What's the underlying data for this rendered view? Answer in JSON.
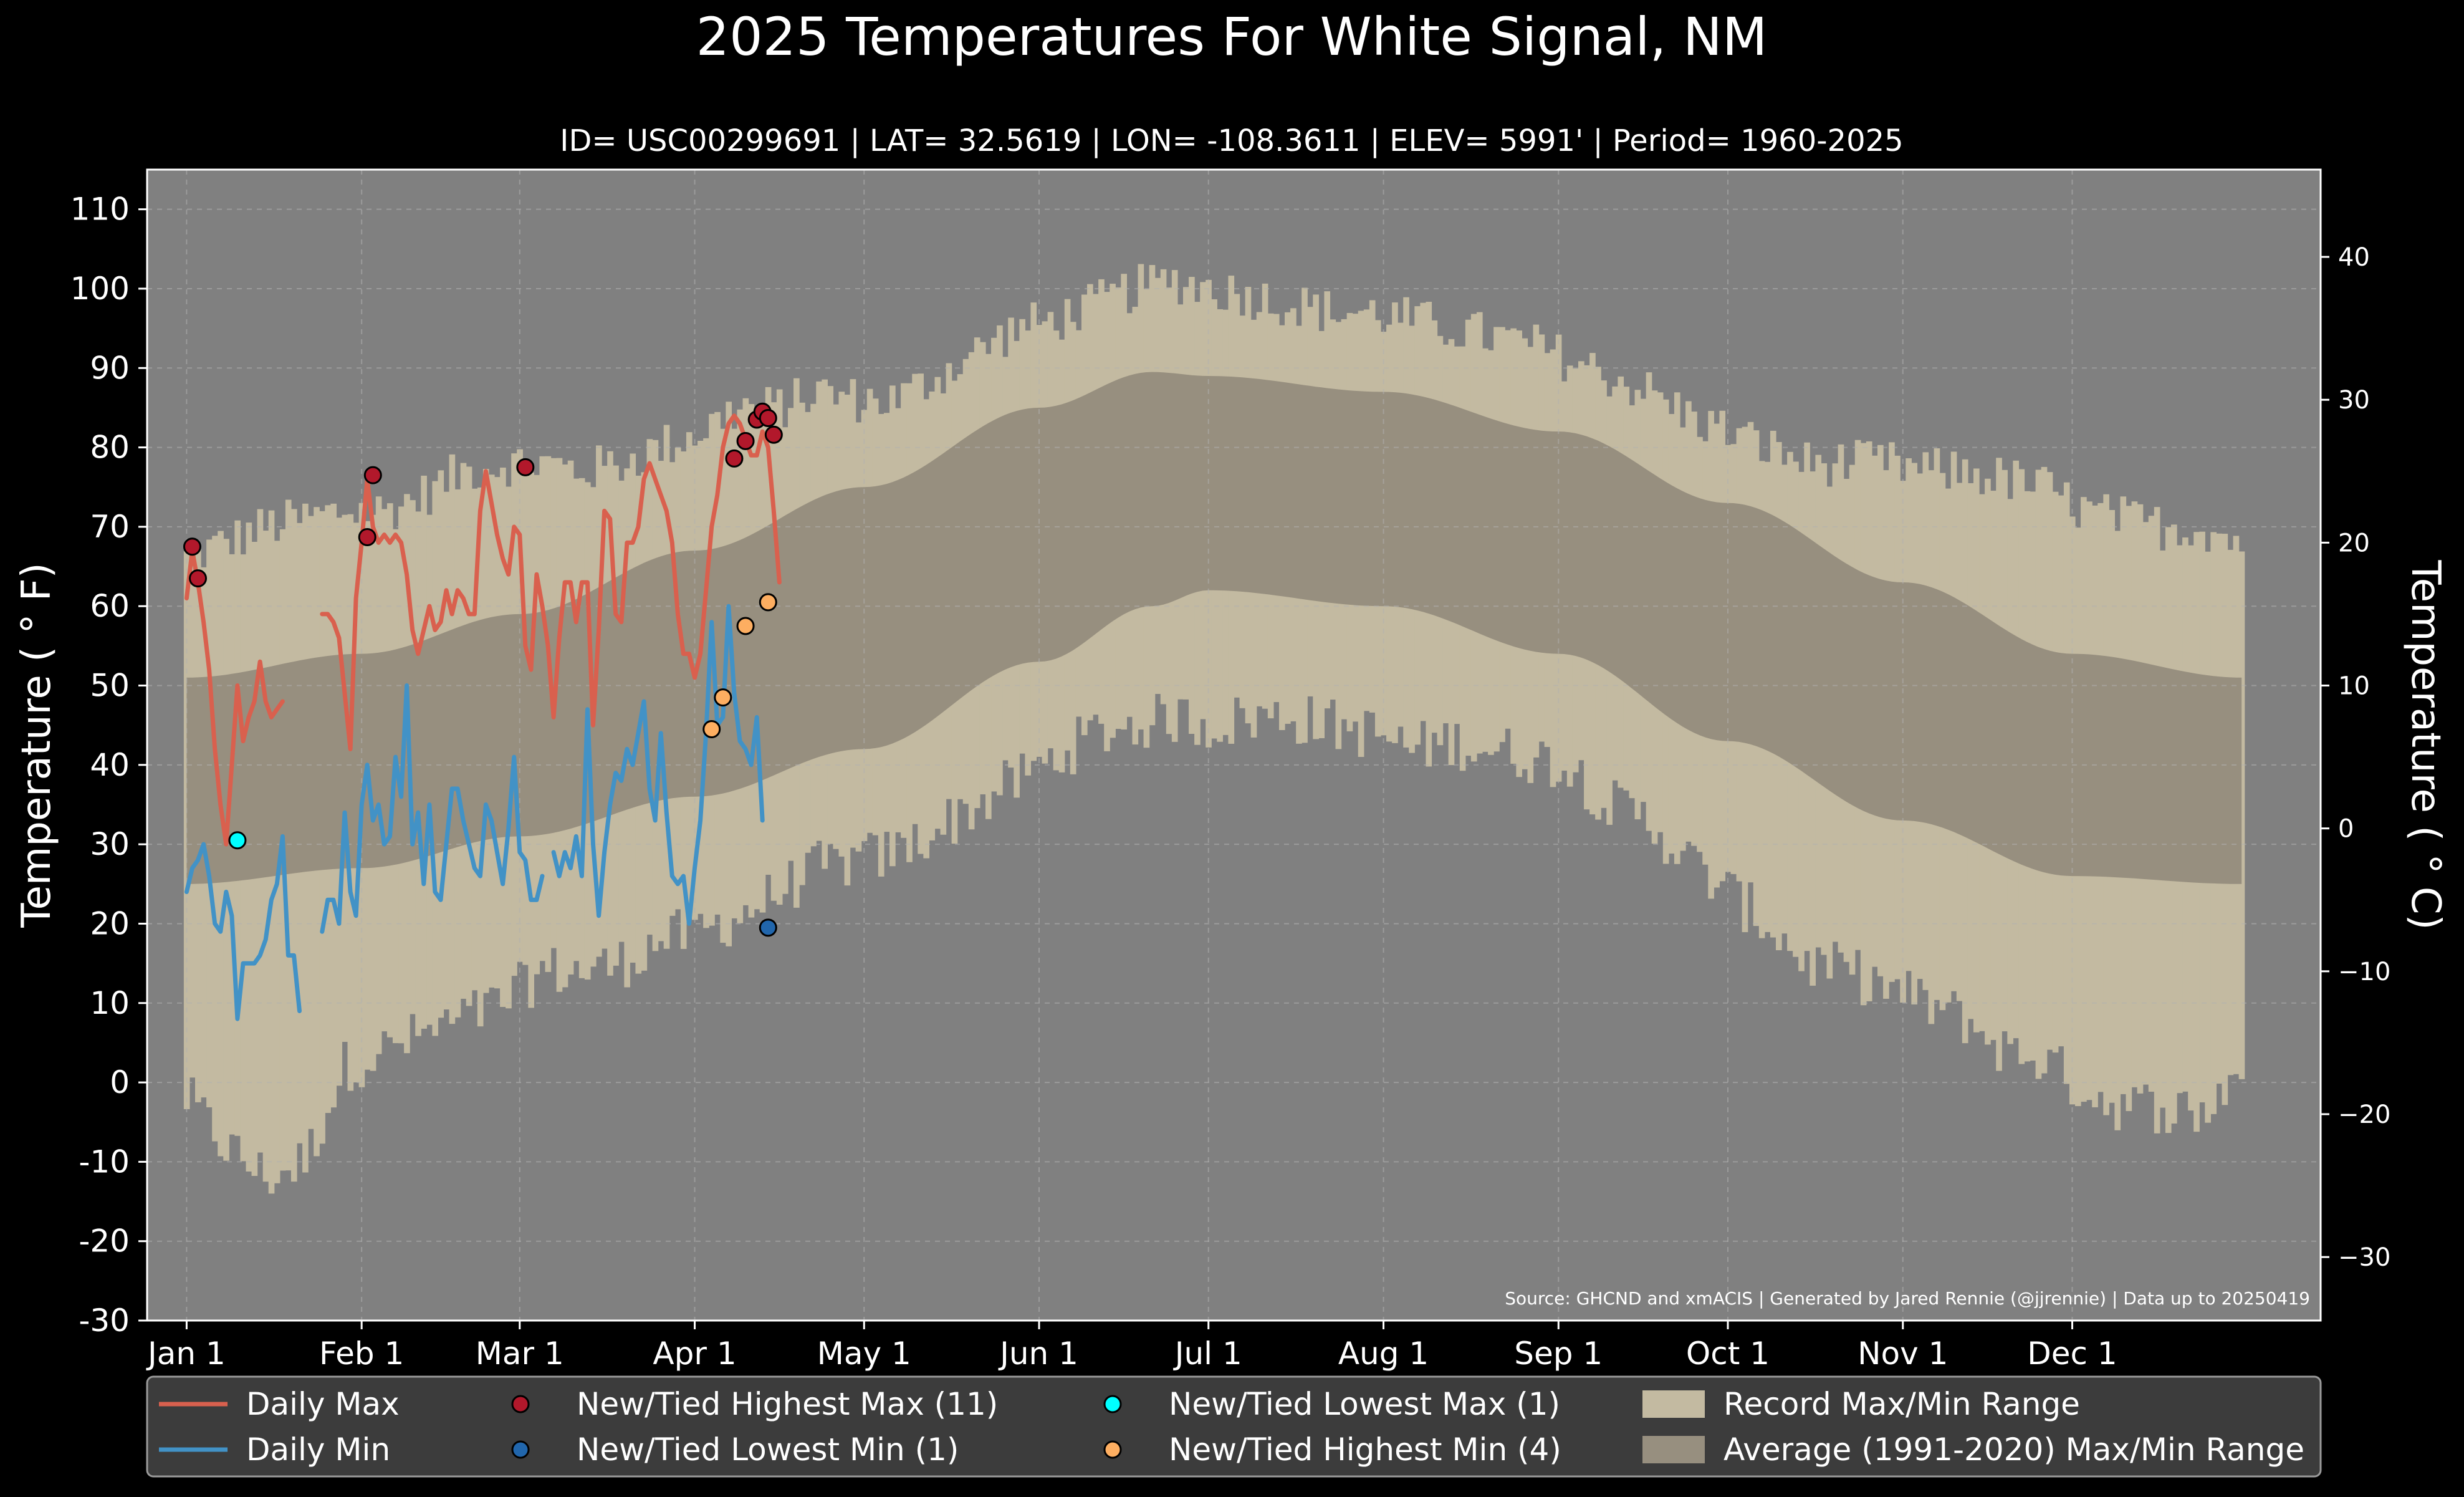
{
  "chart_data": {
    "type": "line",
    "title": "2025 Temperatures For White Signal, NM",
    "subtitle": "ID= USC00299691 | LAT= 32.5619 | LON= -108.3611 | ELEV= 5991' | Period= 1960-2025",
    "ylabel": "Temperature ( ° F)",
    "ylabel_right": "Temperature ( ° C)",
    "source": "Source: GHCND and xmACIS | Generated by Jared Rennie (@jjrennie) | Data up to 20250419",
    "ylim": [
      -30,
      115
    ],
    "ylim_right_c": [
      -34.44,
      46.11
    ],
    "xlim": [
      -6,
      379
    ],
    "grid": true,
    "legend_placement": "bottom",
    "y_ticks": [
      -30,
      -20,
      -10,
      0,
      10,
      20,
      30,
      40,
      50,
      60,
      70,
      80,
      90,
      100,
      110
    ],
    "y_tick_labels": [
      "-30",
      "-20",
      "-10",
      "0",
      "10",
      "20",
      "30",
      "40",
      "50",
      "60",
      "70",
      "80",
      "90",
      "100",
      "110"
    ],
    "y_ticks_right": [
      -30,
      -20,
      -10,
      0,
      10,
      20,
      30,
      40
    ],
    "y_tick_labels_right": [
      "−30",
      "−20",
      "−10",
      "0",
      "10",
      "20",
      "30",
      "40"
    ],
    "x_ticks": [
      1,
      32,
      60,
      91,
      121,
      152,
      182,
      213,
      244,
      274,
      305,
      335
    ],
    "x_tick_labels": [
      "Jan 1",
      "Feb 1",
      "Mar 1",
      "Apr 1",
      "May 1",
      "Jun 1",
      "Jul 1",
      "Aug 1",
      "Sep 1",
      "Oct 1",
      "Nov 1",
      "Dec 1"
    ],
    "record_max_anchors": {
      "day": [
        1,
        8,
        15,
        22,
        29,
        36,
        43,
        50,
        57,
        64,
        71,
        78,
        85,
        92,
        99,
        106,
        113,
        120,
        127,
        134,
        141,
        148,
        155,
        162,
        169,
        176,
        183,
        190,
        197,
        204,
        211,
        218,
        225,
        232,
        239,
        246,
        253,
        260,
        267,
        274,
        281,
        288,
        295,
        302,
        309,
        316,
        323,
        330,
        337,
        344,
        351,
        358,
        365
      ],
      "value": [
        66,
        68,
        70,
        71,
        72,
        72,
        74,
        77,
        78,
        78,
        77,
        78,
        80,
        82,
        85,
        85,
        87,
        86,
        86,
        89,
        92,
        95,
        96,
        98,
        100,
        101,
        100,
        99,
        98,
        97,
        97,
        96,
        95,
        94,
        93,
        91,
        89,
        87,
        84,
        82,
        80,
        78,
        78,
        78,
        77,
        77,
        76,
        75,
        72,
        71,
        70,
        70,
        68
      ]
    },
    "record_min_anchors": {
      "day": [
        1,
        8,
        15,
        22,
        29,
        36,
        43,
        50,
        57,
        64,
        71,
        78,
        85,
        92,
        99,
        106,
        113,
        120,
        127,
        134,
        141,
        148,
        155,
        162,
        169,
        176,
        183,
        190,
        197,
        204,
        211,
        218,
        225,
        232,
        239,
        246,
        253,
        260,
        267,
        274,
        281,
        288,
        295,
        302,
        309,
        316,
        323,
        330,
        337,
        344,
        351,
        358,
        365
      ],
      "value": [
        -2,
        -8,
        -12,
        -10,
        2,
        4,
        6,
        8,
        10,
        14,
        14,
        15,
        18,
        19,
        21,
        24,
        27,
        28,
        29,
        32,
        35,
        38,
        41,
        44,
        45,
        46,
        45,
        46,
        46,
        45,
        44,
        42,
        43,
        42,
        41,
        40,
        35,
        33,
        28,
        24,
        20,
        15,
        14,
        12,
        10,
        8,
        4,
        3,
        -1,
        -3,
        -3,
        -4,
        2
      ]
    },
    "series": [
      {
        "name": "Daily Max",
        "color": "#d9604e",
        "x": [
          1,
          2,
          3,
          4,
          5,
          6,
          7,
          8,
          9,
          10,
          11,
          12,
          13,
          14,
          15,
          16,
          17,
          18,
          19,
          20,
          21,
          22,
          23,
          null,
          25,
          26,
          27,
          28,
          29,
          30,
          31,
          32,
          33,
          34,
          35,
          36,
          37,
          38,
          39,
          40,
          41,
          42,
          43,
          44,
          45,
          46,
          47,
          48,
          49,
          50,
          51,
          52,
          53,
          54,
          55,
          56,
          57,
          58,
          59,
          60,
          61,
          62,
          63,
          64,
          65,
          66,
          67,
          68,
          69,
          70,
          71,
          72,
          73,
          74,
          75,
          76,
          77,
          78,
          79,
          80,
          81,
          82,
          83,
          84,
          85,
          86,
          87,
          88,
          89,
          90,
          91,
          92,
          93,
          94,
          95,
          96,
          97,
          98,
          99,
          100,
          101,
          102,
          103,
          104,
          105,
          106,
          107,
          108,
          109
        ],
        "values": [
          61,
          67,
          63,
          58,
          52,
          42,
          35,
          30,
          40,
          50,
          43,
          46,
          48,
          53,
          48,
          46,
          47,
          48,
          null,
          null,
          null,
          null,
          null,
          null,
          59,
          59,
          58,
          56,
          49,
          42,
          61,
          68,
          76,
          70,
          68,
          69,
          68,
          69,
          68,
          64,
          57,
          54,
          57,
          60,
          57,
          58,
          62,
          59,
          62,
          61,
          59,
          59,
          72,
          77,
          73,
          69,
          66,
          64,
          70,
          69,
          55,
          52,
          64,
          60,
          55,
          46,
          56,
          63,
          63,
          58,
          63,
          63,
          45,
          57,
          72,
          71,
          59,
          58,
          68,
          68,
          70,
          76,
          78,
          76,
          74,
          72,
          68,
          59,
          54,
          54,
          51,
          54,
          62,
          70,
          74,
          80,
          83,
          84,
          83,
          81,
          79,
          79,
          82,
          80,
          72,
          63,
          null,
          null,
          null
        ]
      },
      {
        "name": "Daily Min",
        "color": "#4292c6",
        "x": [
          1,
          2,
          3,
          4,
          5,
          6,
          7,
          8,
          9,
          10,
          11,
          12,
          13,
          14,
          15,
          16,
          17,
          18,
          19,
          20,
          21,
          22,
          23,
          24,
          25,
          26,
          27,
          28,
          29,
          30,
          31,
          32,
          33,
          34,
          35,
          36,
          37,
          38,
          39,
          40,
          41,
          42,
          43,
          44,
          45,
          46,
          47,
          48,
          49,
          50,
          51,
          52,
          53,
          54,
          55,
          56,
          57,
          58,
          59,
          60,
          61,
          62,
          63,
          64,
          65,
          66,
          67,
          68,
          69,
          70,
          71,
          72,
          73,
          74,
          75,
          76,
          77,
          78,
          79,
          80,
          81,
          82,
          83,
          84,
          85,
          86,
          87,
          88,
          89,
          90,
          91,
          92,
          93,
          94,
          95,
          96,
          97,
          98,
          99,
          100,
          101,
          102,
          103,
          104,
          105,
          106,
          107,
          108,
          109
        ],
        "values": [
          24,
          27,
          28,
          30,
          26,
          20,
          19,
          24,
          21,
          8,
          15,
          15,
          15,
          16,
          18,
          23,
          25,
          31,
          16,
          16,
          9,
          null,
          null,
          null,
          19,
          23,
          23,
          20,
          34,
          24,
          21,
          35,
          40,
          33,
          35,
          30,
          31,
          41,
          36,
          50,
          30,
          34,
          25,
          35,
          24,
          23,
          30,
          37,
          37,
          33,
          30,
          27,
          26,
          35,
          33,
          29,
          25,
          32,
          41,
          29,
          28,
          23,
          23,
          26,
          null,
          29,
          26,
          29,
          27,
          31,
          26,
          47,
          30,
          21,
          29,
          35,
          39,
          38,
          42,
          40,
          44,
          48,
          37,
          33,
          44,
          34,
          26,
          25,
          26,
          20,
          27,
          33,
          44,
          58,
          45,
          46,
          60,
          49,
          43,
          42,
          40,
          46,
          33,
          null,
          null,
          null,
          null,
          null,
          null
        ]
      }
    ],
    "markers": {
      "highest_max": {
        "color": "#b2182b",
        "x": [
          2,
          3,
          33,
          34,
          61,
          98,
          100,
          102,
          103,
          104,
          105
        ],
        "y": [
          67.5,
          63.5,
          68.7,
          76.5,
          77.5,
          78.6,
          80.8,
          83.5,
          84.5,
          83.7,
          81.6
        ]
      },
      "lowest_min": {
        "color": "#2166ac",
        "x": [
          104
        ],
        "y": [
          19.5
        ]
      },
      "lowest_max": {
        "color": "#00ffff",
        "x": [
          10
        ],
        "y": [
          30.5
        ]
      },
      "highest_min": {
        "color": "#fdae61",
        "x": [
          94,
          96,
          100,
          104
        ],
        "y": [
          44.5,
          48.5,
          57.5,
          60.5
        ]
      }
    },
    "average_band": {
      "day": [
        1,
        32,
        60,
        91,
        121,
        152,
        172,
        182,
        213,
        244,
        274,
        305,
        335,
        365
      ],
      "max": [
        51,
        54,
        59,
        67,
        75,
        85,
        89.5,
        89,
        87,
        82,
        73,
        63,
        54,
        51
      ],
      "min": [
        25,
        27,
        31,
        36,
        42,
        53,
        60,
        62,
        60,
        54,
        43,
        33,
        26,
        25
      ]
    }
  },
  "legend": {
    "items": [
      {
        "label": "Daily Max",
        "kind": "line",
        "color": "#d9604e"
      },
      {
        "label": "Daily Min",
        "kind": "line",
        "color": "#4292c6"
      },
      {
        "label": "New/Tied Highest Max (11)",
        "kind": "marker",
        "color": "#b2182b"
      },
      {
        "label": "New/Tied Lowest Min (1)",
        "kind": "marker",
        "color": "#2166ac"
      },
      {
        "label": "New/Tied Lowest Max (1)",
        "kind": "marker",
        "color": "#00ffff"
      },
      {
        "label": "New/Tied Highest Min (4)",
        "kind": "marker",
        "color": "#fdae61"
      },
      {
        "label": "Record Max/Min Range",
        "kind": "patch",
        "color": "#c3baa1"
      },
      {
        "label": "Average (1991-2020) Max/Min Range",
        "kind": "patch",
        "color": "#978f7f"
      }
    ]
  },
  "colors": {
    "background": "#000000",
    "plot_background": "#808080",
    "record_range": "#c3baa1",
    "average_range": "#978f7f",
    "grid": "#b0b0b0",
    "legend_background": "#3c3c3c"
  }
}
